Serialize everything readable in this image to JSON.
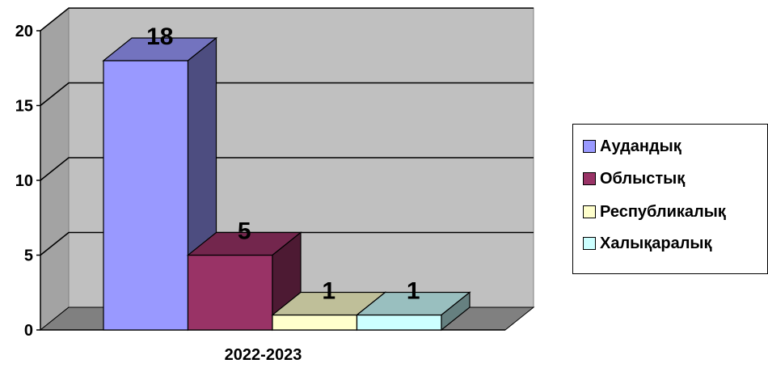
{
  "chart_data": {
    "type": "bar",
    "style": "3d-clustered",
    "categories": [
      "2022-2023"
    ],
    "series": [
      {
        "name": "Аудандық",
        "values": [
          18
        ],
        "color": "#9999FF"
      },
      {
        "name": "Облыстық",
        "values": [
          5
        ],
        "color": "#993366"
      },
      {
        "name": "Республикалық",
        "values": [
          1
        ],
        "color": "#FFFFCC"
      },
      {
        "name": "Халықаралық",
        "values": [
          1
        ],
        "color": "#CCFFFF"
      }
    ],
    "data_labels": [
      "18",
      "5",
      "1",
      "1"
    ],
    "ylim": [
      0,
      20
    ],
    "yticks": [
      "0",
      "5",
      "10",
      "15",
      "20"
    ],
    "grid": true,
    "legend_position": "right",
    "wall_color": "#C0C0C0",
    "floor_color": "#808080"
  }
}
